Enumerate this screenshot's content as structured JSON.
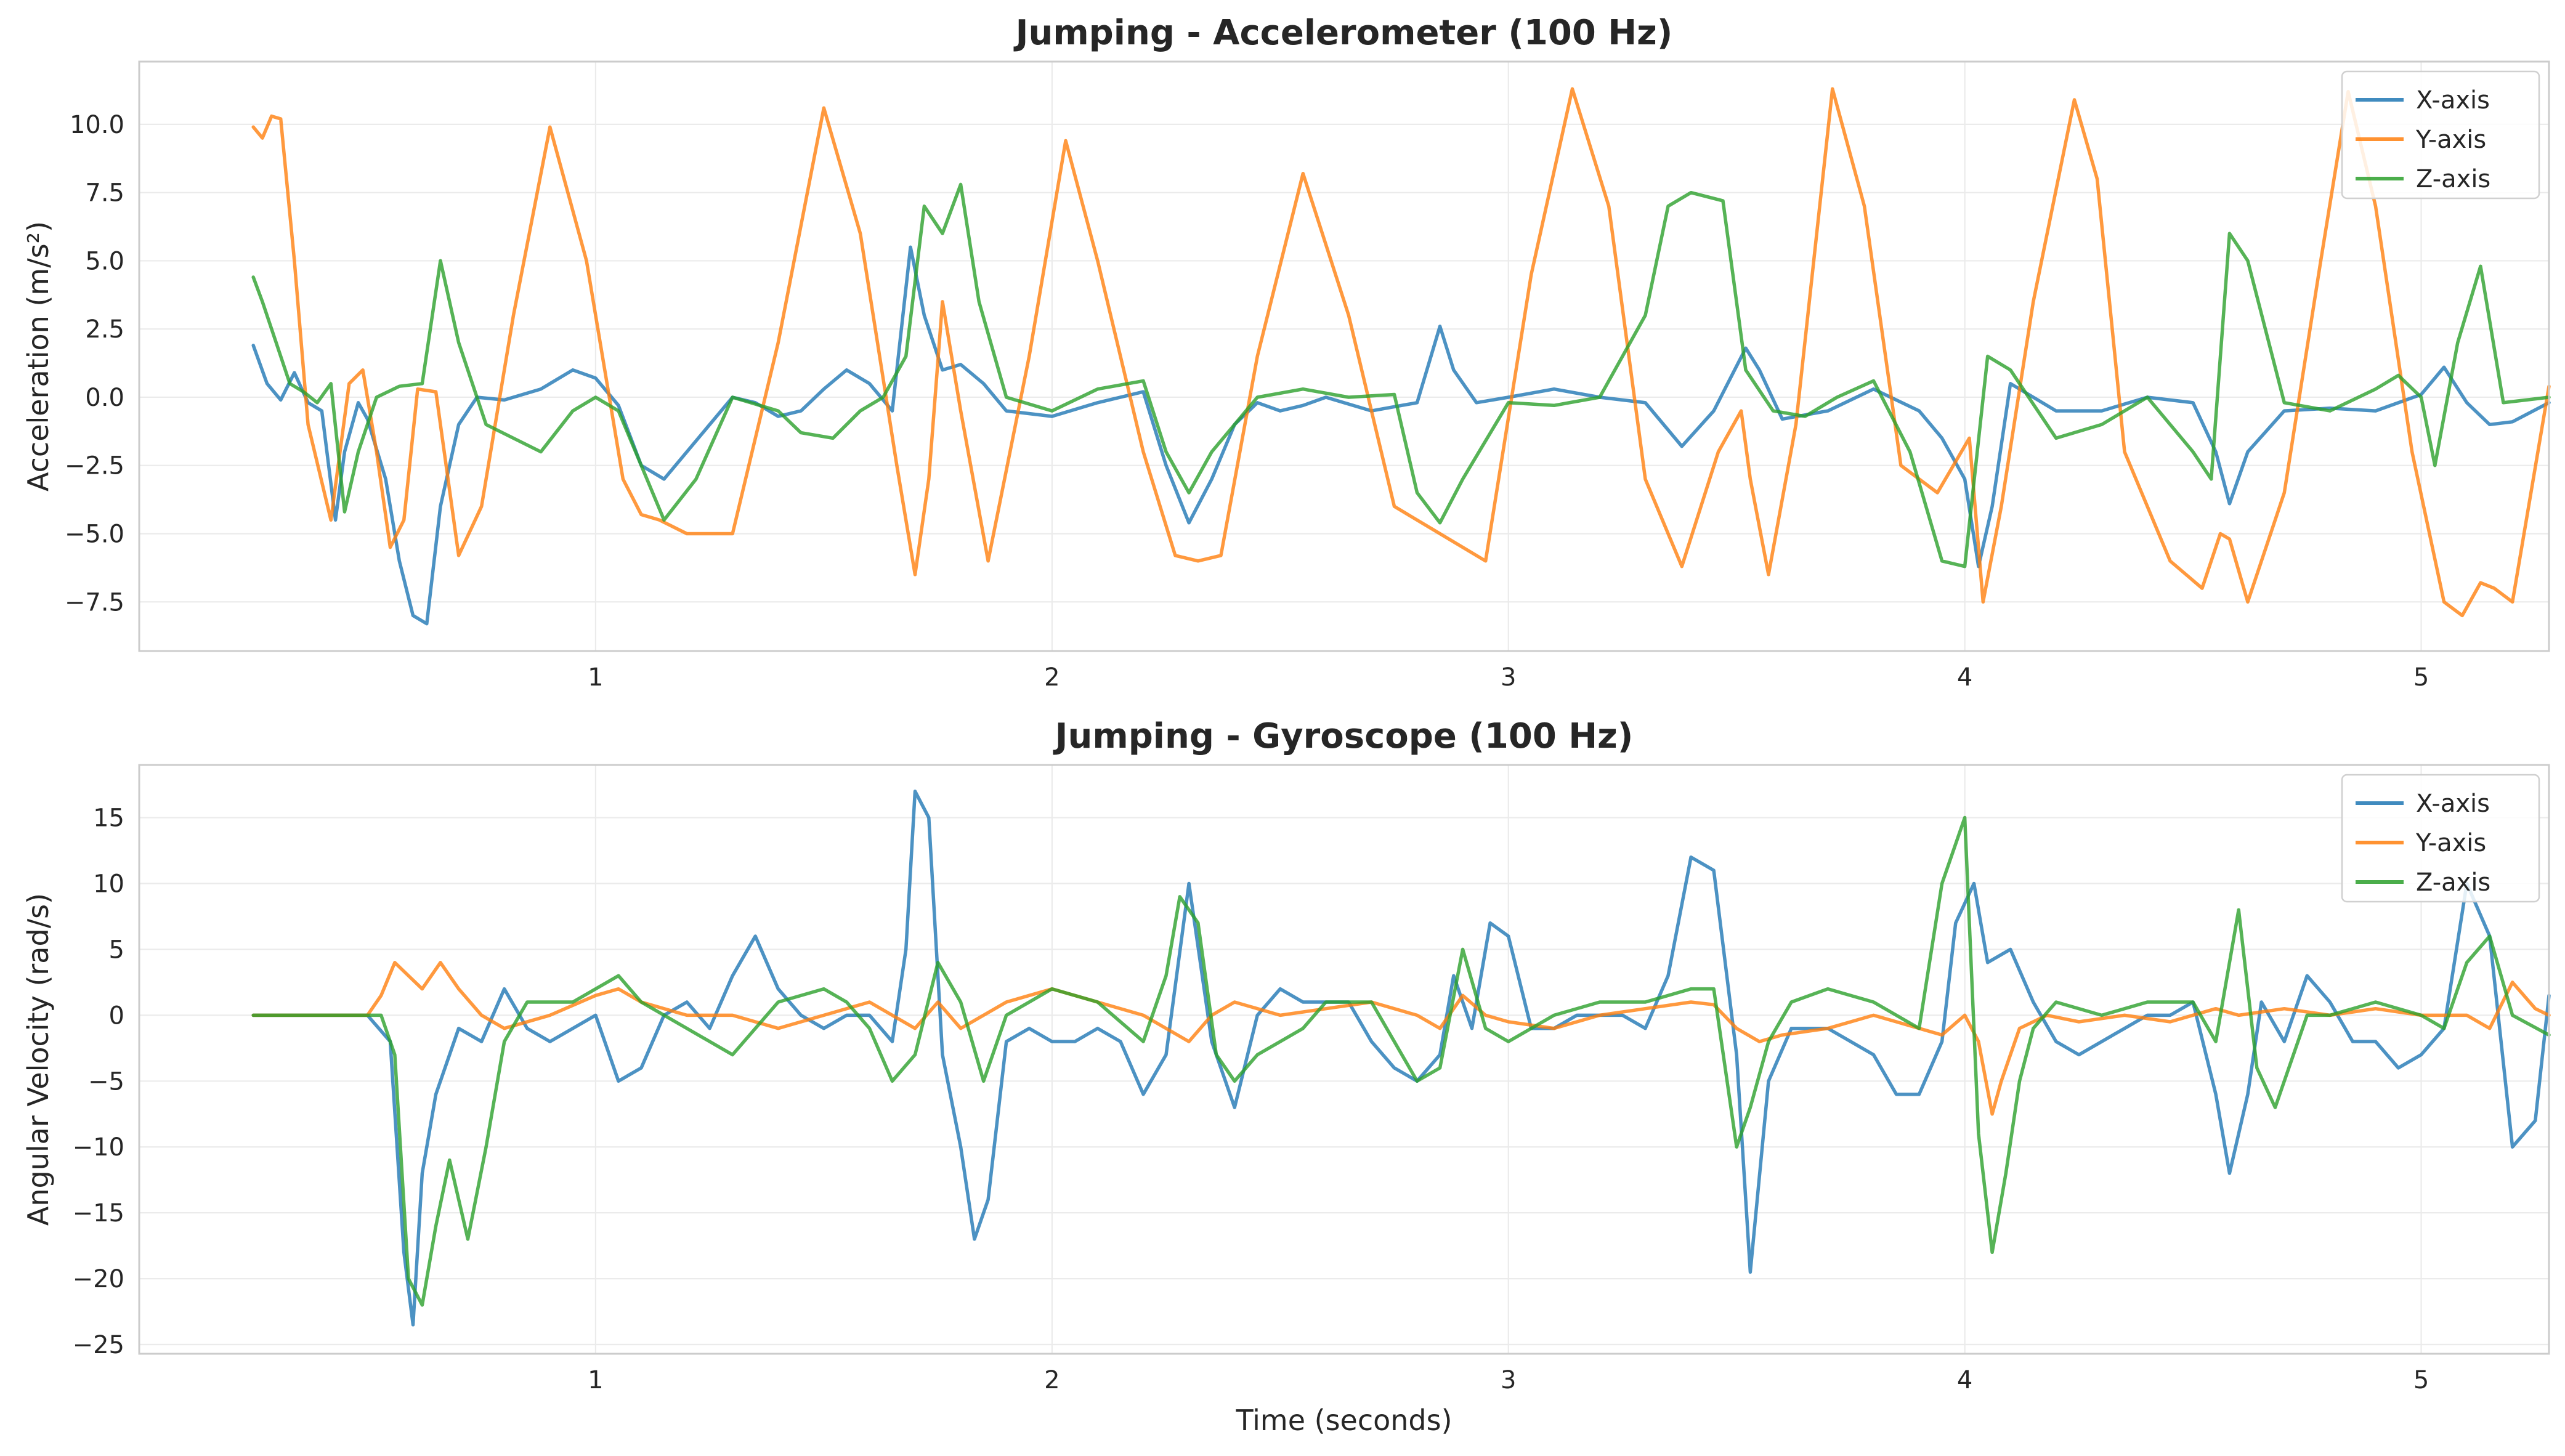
{
  "chart_data": [
    {
      "type": "line",
      "title": "Jumping - Accelerometer (100 Hz)",
      "xlabel": "",
      "ylabel": "Acceleration (m/s²)",
      "xlim": [
        0.0,
        5.28
      ],
      "ylim": [
        -9.3,
        12.3
      ],
      "xticks": [
        1,
        2,
        3,
        4,
        5
      ],
      "yticks": [
        -7.5,
        -5.0,
        -2.5,
        0.0,
        2.5,
        5.0,
        7.5,
        10.0
      ],
      "grid": true,
      "legend_position": "top-right",
      "series": [
        {
          "name": "X-axis",
          "color": "#1f77b4",
          "x": [
            0.25,
            0.28,
            0.31,
            0.34,
            0.37,
            0.4,
            0.43,
            0.45,
            0.48,
            0.5,
            0.54,
            0.57,
            0.6,
            0.63,
            0.66,
            0.7,
            0.74,
            0.8,
            0.88,
            0.95,
            1.0,
            1.05,
            1.1,
            1.15,
            1.25,
            1.3,
            1.35,
            1.4,
            1.45,
            1.5,
            1.55,
            1.6,
            1.65,
            1.69,
            1.72,
            1.76,
            1.8,
            1.85,
            1.9,
            2.0,
            2.1,
            2.2,
            2.25,
            2.3,
            2.35,
            2.4,
            2.45,
            2.5,
            2.55,
            2.6,
            2.7,
            2.8,
            2.85,
            2.88,
            2.93,
            3.0,
            3.1,
            3.2,
            3.3,
            3.38,
            3.45,
            3.52,
            3.55,
            3.6,
            3.7,
            3.8,
            3.9,
            3.95,
            4.0,
            4.03,
            4.06,
            4.1,
            4.2,
            4.3,
            4.4,
            4.5,
            4.55,
            4.58,
            4.62,
            4.7,
            4.8,
            4.9,
            5.0,
            5.05,
            5.1,
            5.15,
            5.2,
            5.28
          ],
          "y": [
            1.9,
            0.5,
            -0.1,
            0.9,
            -0.2,
            -0.5,
            -4.5,
            -2.0,
            -0.2,
            -0.8,
            -3.0,
            -6.0,
            -8.0,
            -8.3,
            -4.0,
            -1.0,
            0.0,
            -0.1,
            0.3,
            1.0,
            0.7,
            -0.3,
            -2.5,
            -3.0,
            -1.0,
            0.0,
            -0.2,
            -0.7,
            -0.5,
            0.3,
            1.0,
            0.5,
            -0.5,
            5.5,
            3.0,
            1.0,
            1.2,
            0.5,
            -0.5,
            -0.7,
            -0.2,
            0.2,
            -2.5,
            -4.6,
            -3.0,
            -1.0,
            -0.2,
            -0.5,
            -0.3,
            0.0,
            -0.5,
            -0.2,
            2.6,
            1.0,
            -0.2,
            0.0,
            0.3,
            0.0,
            -0.2,
            -1.8,
            -0.5,
            1.8,
            1.0,
            -0.8,
            -0.5,
            0.3,
            -0.5,
            -1.5,
            -3.0,
            -6.2,
            -4.0,
            0.5,
            -0.5,
            -0.5,
            0.0,
            -0.2,
            -2.0,
            -3.9,
            -2.0,
            -0.5,
            -0.4,
            -0.5,
            0.1,
            1.1,
            -0.2,
            -1.0,
            -0.9,
            -0.2
          ]
        },
        {
          "name": "Y-axis",
          "color": "#ff7f0e",
          "x": [
            0.25,
            0.27,
            0.29,
            0.31,
            0.34,
            0.37,
            0.42,
            0.46,
            0.49,
            0.52,
            0.55,
            0.58,
            0.61,
            0.65,
            0.7,
            0.75,
            0.82,
            0.9,
            0.98,
            1.06,
            1.1,
            1.14,
            1.2,
            1.3,
            1.4,
            1.5,
            1.58,
            1.66,
            1.7,
            1.73,
            1.76,
            1.8,
            1.86,
            1.95,
            2.03,
            2.1,
            2.2,
            2.27,
            2.32,
            2.37,
            2.45,
            2.55,
            2.65,
            2.75,
            2.85,
            2.95,
            3.05,
            3.14,
            3.22,
            3.3,
            3.38,
            3.46,
            3.51,
            3.53,
            3.57,
            3.63,
            3.71,
            3.78,
            3.86,
            3.94,
            4.01,
            4.04,
            4.08,
            4.15,
            4.24,
            4.29,
            4.35,
            4.45,
            4.52,
            4.56,
            4.58,
            4.62,
            4.7,
            4.78,
            4.84,
            4.9,
            4.98,
            5.05,
            5.09,
            5.13,
            5.16,
            5.2,
            5.28
          ],
          "y": [
            9.9,
            9.5,
            10.3,
            10.2,
            5.0,
            -1.0,
            -4.5,
            0.5,
            1.0,
            -2.0,
            -5.5,
            -4.5,
            0.3,
            0.2,
            -5.8,
            -4.0,
            3.0,
            9.9,
            5.0,
            -3.0,
            -4.3,
            -4.5,
            -5.0,
            -5.0,
            2.0,
            10.6,
            6.0,
            -2.5,
            -6.5,
            -3.0,
            3.5,
            -0.5,
            -6.0,
            1.5,
            9.4,
            5.0,
            -2.0,
            -5.8,
            -6.0,
            -5.8,
            1.5,
            8.2,
            3.0,
            -4.0,
            -5.0,
            -6.0,
            4.5,
            11.3,
            7.0,
            -3.0,
            -6.2,
            -2.0,
            -0.5,
            -3.0,
            -6.5,
            -1.0,
            11.3,
            7.0,
            -2.5,
            -3.5,
            -1.5,
            -7.5,
            -4.0,
            3.5,
            10.9,
            8.0,
            -2.0,
            -6.0,
            -7.0,
            -5.0,
            -5.2,
            -7.5,
            -3.5,
            5.0,
            11.2,
            7.0,
            -2.0,
            -7.5,
            -8.0,
            -6.8,
            -7.0,
            -7.5,
            0.4
          ]
        },
        {
          "name": "Z-axis",
          "color": "#2ca02c",
          "x": [
            0.25,
            0.27,
            0.3,
            0.33,
            0.36,
            0.39,
            0.42,
            0.45,
            0.48,
            0.52,
            0.57,
            0.62,
            0.66,
            0.7,
            0.76,
            0.82,
            0.88,
            0.95,
            1.0,
            1.05,
            1.1,
            1.15,
            1.22,
            1.3,
            1.4,
            1.45,
            1.52,
            1.58,
            1.63,
            1.68,
            1.72,
            1.76,
            1.8,
            1.84,
            1.9,
            2.0,
            2.1,
            2.2,
            2.25,
            2.3,
            2.35,
            2.45,
            2.55,
            2.65,
            2.75,
            2.8,
            2.85,
            2.9,
            3.0,
            3.1,
            3.2,
            3.3,
            3.35,
            3.4,
            3.47,
            3.52,
            3.58,
            3.65,
            3.72,
            3.8,
            3.88,
            3.95,
            4.0,
            4.05,
            4.1,
            4.2,
            4.3,
            4.4,
            4.5,
            4.54,
            4.58,
            4.62,
            4.7,
            4.8,
            4.9,
            4.95,
            5.0,
            5.03,
            5.08,
            5.13,
            5.18,
            5.28
          ],
          "y": [
            4.4,
            3.5,
            2.0,
            0.5,
            0.2,
            -0.2,
            0.5,
            -4.2,
            -2.0,
            0.0,
            0.4,
            0.5,
            5.0,
            2.0,
            -1.0,
            -1.5,
            -2.0,
            -0.5,
            0.0,
            -0.5,
            -2.5,
            -4.5,
            -3.0,
            0.0,
            -0.5,
            -1.3,
            -1.5,
            -0.5,
            0.0,
            1.5,
            7.0,
            6.0,
            7.8,
            3.5,
            0.0,
            -0.5,
            0.3,
            0.6,
            -2.0,
            -3.5,
            -2.0,
            0.0,
            0.3,
            0.0,
            0.1,
            -3.5,
            -4.6,
            -3.0,
            -0.2,
            -0.3,
            0.0,
            3.0,
            7.0,
            7.5,
            7.2,
            1.0,
            -0.5,
            -0.7,
            0.0,
            0.6,
            -2.0,
            -6.0,
            -6.2,
            1.5,
            1.0,
            -1.5,
            -1.0,
            0.0,
            -2.0,
            -3.0,
            6.0,
            5.0,
            -0.2,
            -0.5,
            0.3,
            0.8,
            0.0,
            -2.5,
            2.0,
            4.8,
            -0.2,
            0.0
          ]
        }
      ]
    },
    {
      "type": "line",
      "title": "Jumping - Gyroscope (100 Hz)",
      "xlabel": "Time (seconds)",
      "ylabel": "Angular Velocity (rad/s)",
      "xlim": [
        0.0,
        5.28
      ],
      "ylim": [
        -25.7,
        19.0
      ],
      "xticks": [
        1,
        2,
        3,
        4,
        5
      ],
      "yticks": [
        -25,
        -20,
        -15,
        -10,
        -5,
        0,
        5,
        10,
        15
      ],
      "grid": true,
      "legend_position": "top-right",
      "series": [
        {
          "name": "X-axis",
          "color": "#1f77b4",
          "x": [
            0.25,
            0.5,
            0.55,
            0.58,
            0.6,
            0.62,
            0.65,
            0.7,
            0.75,
            0.8,
            0.85,
            0.9,
            0.95,
            1.0,
            1.05,
            1.1,
            1.15,
            1.2,
            1.25,
            1.3,
            1.35,
            1.4,
            1.45,
            1.5,
            1.55,
            1.6,
            1.65,
            1.68,
            1.7,
            1.73,
            1.76,
            1.8,
            1.83,
            1.86,
            1.9,
            1.95,
            2.0,
            2.05,
            2.1,
            2.15,
            2.2,
            2.25,
            2.3,
            2.35,
            2.4,
            2.45,
            2.5,
            2.55,
            2.6,
            2.65,
            2.7,
            2.75,
            2.8,
            2.85,
            2.88,
            2.92,
            2.96,
            3.0,
            3.05,
            3.1,
            3.15,
            3.2,
            3.25,
            3.3,
            3.35,
            3.4,
            3.45,
            3.5,
            3.53,
            3.57,
            3.62,
            3.7,
            3.8,
            3.85,
            3.9,
            3.95,
            3.98,
            4.02,
            4.05,
            4.1,
            4.15,
            4.2,
            4.25,
            4.3,
            4.35,
            4.4,
            4.45,
            4.5,
            4.55,
            4.58,
            4.62,
            4.65,
            4.7,
            4.75,
            4.8,
            4.85,
            4.9,
            4.95,
            5.0,
            5.05,
            5.1,
            5.15,
            5.2,
            5.25,
            5.28
          ],
          "y": [
            0,
            0,
            -2,
            -18,
            -23.5,
            -12,
            -6,
            -1,
            -2,
            2,
            -1,
            -2,
            -1,
            0,
            -5,
            -4,
            0,
            1,
            -1,
            3,
            6,
            2,
            0,
            -1,
            0,
            0,
            -2,
            5,
            17,
            15,
            -3,
            -10,
            -17,
            -14,
            -2,
            -1,
            -2,
            -2,
            -1,
            -2,
            -6,
            -3,
            10,
            -2,
            -7,
            0,
            2,
            1,
            1,
            1,
            -2,
            -4,
            -5,
            -3,
            3,
            -1,
            7,
            6,
            -1,
            -1,
            0,
            0,
            0,
            -1,
            3,
            12,
            11,
            -3,
            -19.5,
            -5,
            -1,
            -1,
            -3,
            -6,
            -6,
            -2,
            7,
            10,
            4,
            5,
            1,
            -2,
            -3,
            -2,
            -1,
            0,
            0,
            1,
            -6,
            -12,
            -6,
            1,
            -2,
            3,
            1,
            -2,
            -2,
            -4,
            -3,
            -1,
            10,
            6,
            -10,
            -8,
            1.5
          ]
        },
        {
          "name": "Y-axis",
          "color": "#ff7f0e",
          "x": [
            0.25,
            0.5,
            0.53,
            0.56,
            0.59,
            0.62,
            0.66,
            0.7,
            0.75,
            0.8,
            0.9,
            1.0,
            1.05,
            1.1,
            1.2,
            1.3,
            1.4,
            1.5,
            1.6,
            1.65,
            1.7,
            1.75,
            1.8,
            1.85,
            1.9,
            1.95,
            2.0,
            2.1,
            2.2,
            2.25,
            2.3,
            2.35,
            2.4,
            2.5,
            2.6,
            2.7,
            2.8,
            2.85,
            2.9,
            2.95,
            3.0,
            3.1,
            3.2,
            3.3,
            3.4,
            3.45,
            3.5,
            3.55,
            3.6,
            3.7,
            3.8,
            3.85,
            3.9,
            3.95,
            4.0,
            4.03,
            4.06,
            4.08,
            4.12,
            4.18,
            4.25,
            4.35,
            4.45,
            4.55,
            4.6,
            4.7,
            4.8,
            4.9,
            5.0,
            5.1,
            5.15,
            5.2,
            5.25,
            5.28
          ],
          "y": [
            0,
            0,
            1.5,
            4,
            3,
            2,
            4,
            2,
            0,
            -1,
            0,
            1.5,
            2,
            1,
            0,
            0,
            -1,
            0,
            1,
            0,
            -1,
            1,
            -1,
            0,
            1,
            1.5,
            2,
            1,
            0,
            -1,
            -2,
            0,
            1,
            0,
            0.5,
            1,
            0,
            -1,
            1.5,
            0,
            -0.5,
            -1,
            0,
            0.5,
            1,
            0.8,
            -1,
            -2,
            -1.5,
            -1,
            0,
            -0.5,
            -1,
            -1.5,
            0,
            -2,
            -7.5,
            -5,
            -1,
            0,
            -0.5,
            0,
            -0.5,
            0.5,
            0,
            0.5,
            0,
            0.5,
            0,
            0,
            -1,
            2.5,
            0.5,
            0
          ]
        },
        {
          "name": "Z-axis",
          "color": "#2ca02c",
          "x": [
            0.25,
            0.53,
            0.56,
            0.59,
            0.62,
            0.65,
            0.68,
            0.72,
            0.76,
            0.8,
            0.85,
            0.9,
            0.95,
            1.0,
            1.05,
            1.1,
            1.2,
            1.3,
            1.4,
            1.5,
            1.55,
            1.6,
            1.65,
            1.7,
            1.75,
            1.8,
            1.85,
            1.9,
            2.0,
            2.1,
            2.2,
            2.25,
            2.28,
            2.32,
            2.36,
            2.4,
            2.45,
            2.5,
            2.55,
            2.6,
            2.7,
            2.75,
            2.8,
            2.85,
            2.9,
            2.95,
            3.0,
            3.1,
            3.2,
            3.3,
            3.4,
            3.45,
            3.5,
            3.53,
            3.57,
            3.62,
            3.7,
            3.8,
            3.85,
            3.9,
            3.95,
            4.0,
            4.03,
            4.06,
            4.09,
            4.12,
            4.15,
            4.2,
            4.3,
            4.4,
            4.5,
            4.55,
            4.6,
            4.64,
            4.68,
            4.75,
            4.8,
            4.9,
            5.0,
            5.05,
            5.1,
            5.15,
            5.2,
            5.28
          ],
          "y": [
            0,
            0,
            -3,
            -20,
            -22,
            -16,
            -11,
            -17,
            -10,
            -2,
            1,
            1,
            1,
            2,
            3,
            1,
            -1,
            -3,
            1,
            2,
            1,
            -1,
            -5,
            -3,
            4,
            1,
            -5,
            0,
            2,
            1,
            -2,
            3,
            9,
            7,
            -3,
            -5,
            -3,
            -2,
            -1,
            1,
            1,
            -2,
            -5,
            -4,
            5,
            -1,
            -2,
            0,
            1,
            1,
            2,
            2,
            -10,
            -7,
            -2,
            1,
            2,
            1,
            0,
            -1,
            10,
            15,
            -9,
            -18,
            -12,
            -5,
            -1,
            1,
            0,
            1,
            1,
            -2,
            8,
            -4,
            -7,
            0,
            0,
            1,
            0,
            -1,
            4,
            6,
            0,
            -1.5
          ]
        }
      ]
    }
  ]
}
